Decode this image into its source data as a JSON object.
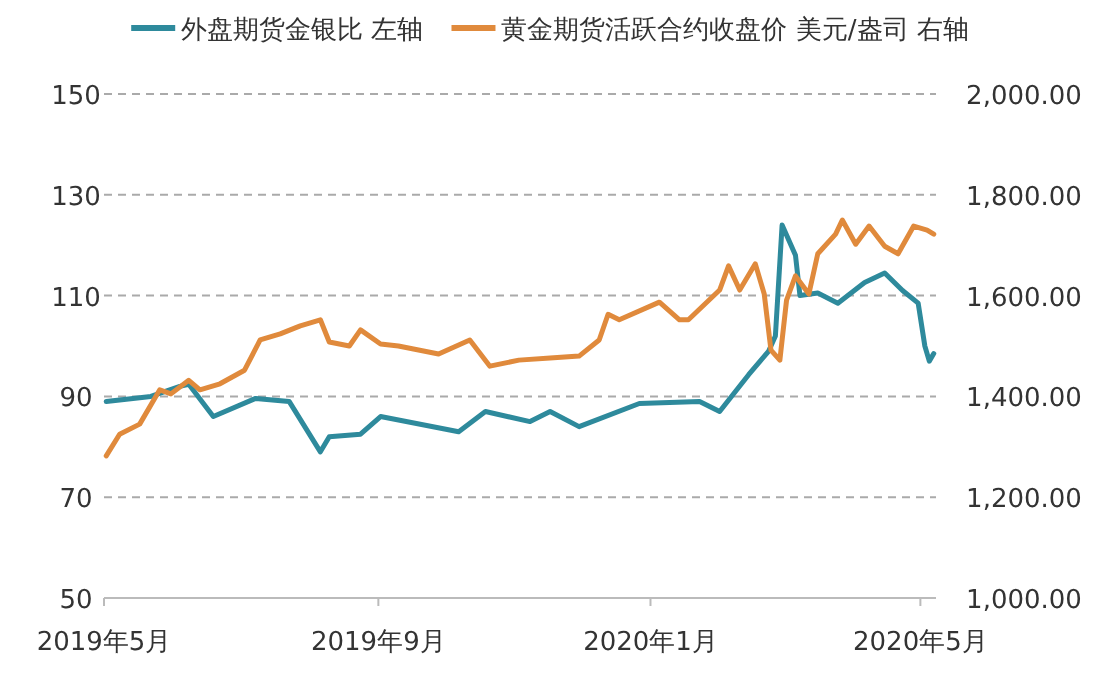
{
  "chart_data": {
    "type": "line",
    "legend": "top",
    "grid": "y",
    "line_style": "solid",
    "marker": "none",
    "xlim": [
      "2019-05-01",
      "2020-05-08"
    ],
    "xticks": [
      {
        "value": "2019-05-01",
        "label": "2019年5月"
      },
      {
        "value": "2019-09-01",
        "label": "2019年9月"
      },
      {
        "value": "2020-01-01",
        "label": "2020年1月"
      },
      {
        "value": "2020-05-01",
        "label": "2020年5月"
      }
    ],
    "ylim": [
      50,
      150
    ],
    "yticks": [
      50,
      70,
      90,
      110,
      130,
      150
    ],
    "y2lim": [
      1000,
      2000
    ],
    "y2ticks": [
      {
        "value": 1000,
        "label": "1,000.00"
      },
      {
        "value": 1200,
        "label": "1,200.00"
      },
      {
        "value": 1400,
        "label": "1,400.00"
      },
      {
        "value": 1600,
        "label": "1,600.00"
      },
      {
        "value": 1800,
        "label": "1,800.00"
      },
      {
        "value": 2000,
        "label": "2,000.00"
      }
    ],
    "series": [
      {
        "name": "外盘期货金银比 左轴",
        "color": "#2e8a9c",
        "x": [
          "2019-05-02",
          "2019-05-22",
          "2019-06-04",
          "2019-06-08",
          "2019-06-19",
          "2019-07-08",
          "2019-07-23",
          "2019-08-06",
          "2019-08-10",
          "2019-08-24",
          "2019-09-02",
          "2019-10-07",
          "2019-10-19",
          "2019-11-08",
          "2019-11-17",
          "2019-11-30",
          "2019-12-27",
          "2020-01-23",
          "2020-02-01",
          "2020-02-14",
          "2020-02-23",
          "2020-02-26",
          "2020-02-29",
          "2020-03-06",
          "2020-03-08",
          "2020-03-16",
          "2020-03-25",
          "2020-04-06",
          "2020-04-15",
          "2020-04-23",
          "2020-04-30",
          "2020-05-03",
          "2020-05-05",
          "2020-05-07"
        ],
        "values": [
          89,
          90,
          92,
          92.4,
          86,
          89.6,
          89,
          79,
          82,
          82.5,
          86,
          83,
          87,
          85,
          87,
          84,
          88.6,
          89,
          87,
          94.3,
          99,
          102,
          124,
          118,
          110,
          110.5,
          108.5,
          112.6,
          114.5,
          111,
          108.5,
          100,
          97,
          98.5
        ]
      },
      {
        "name": "黄金期货活跃合约收盘价 美元/盎司 右轴",
        "color": "#e08a3c",
        "axis": "y2",
        "x": [
          "2019-05-02",
          "2019-05-08",
          "2019-05-17",
          "2019-05-26",
          "2019-05-31",
          "2019-06-08",
          "2019-06-13",
          "2019-06-22",
          "2019-07-03",
          "2019-07-10",
          "2019-07-19",
          "2019-07-28",
          "2019-08-06",
          "2019-08-10",
          "2019-08-19",
          "2019-08-24",
          "2019-09-02",
          "2019-09-10",
          "2019-09-28",
          "2019-10-12",
          "2019-10-21",
          "2019-11-03",
          "2019-11-17",
          "2019-11-30",
          "2019-12-09",
          "2019-12-13",
          "2019-12-18",
          "2020-01-05",
          "2020-01-14",
          "2020-01-18",
          "2020-02-01",
          "2020-02-05",
          "2020-02-10",
          "2020-02-17",
          "2020-02-21",
          "2020-02-24",
          "2020-02-28",
          "2020-03-02",
          "2020-03-06",
          "2020-03-12",
          "2020-03-16",
          "2020-03-24",
          "2020-03-27",
          "2020-04-02",
          "2020-04-08",
          "2020-04-15",
          "2020-04-21",
          "2020-04-28",
          "2020-05-04",
          "2020-05-07"
        ],
        "values": [
          1282,
          1325,
          1345,
          1413,
          1405,
          1432,
          1413,
          1425,
          1452,
          1512,
          1524,
          1540,
          1552,
          1508,
          1500,
          1532,
          1504,
          1500,
          1484,
          1512,
          1460,
          1472,
          1476,
          1480,
          1512,
          1563,
          1552,
          1587,
          1552,
          1552,
          1611,
          1659,
          1611,
          1663,
          1603,
          1492,
          1472,
          1591,
          1639,
          1603,
          1683,
          1722,
          1750,
          1702,
          1738,
          1698,
          1683,
          1738,
          1730,
          1722
        ]
      }
    ]
  }
}
